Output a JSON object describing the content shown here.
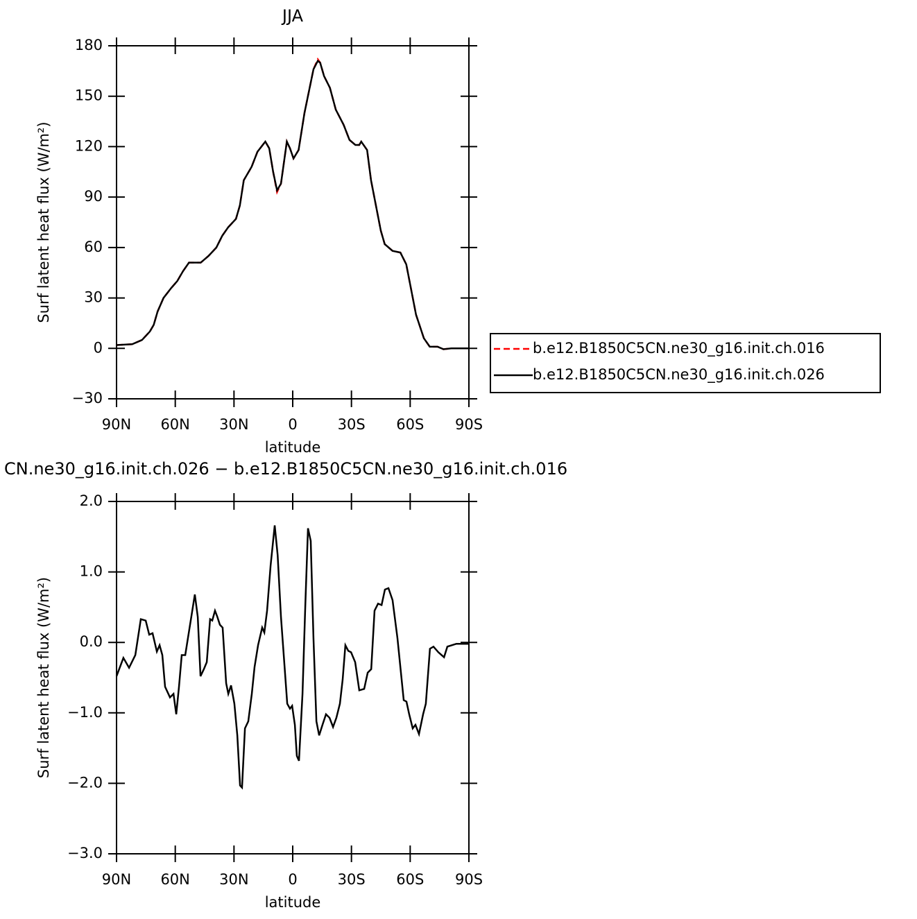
{
  "chart_data": [
    {
      "type": "line",
      "title": "JJA",
      "x_label": "latitude",
      "y_label": "Surf latent heat flux (W/m²)",
      "xlim": [
        90,
        -90
      ],
      "ylim": [
        -30,
        180
      ],
      "xticks": [
        {
          "value": 90,
          "label": "90N"
        },
        {
          "value": 60,
          "label": "60N"
        },
        {
          "value": 30,
          "label": "30N"
        },
        0,
        {
          "value": -30,
          "label": "30S"
        },
        {
          "value": -60,
          "label": "60S"
        },
        {
          "value": -90,
          "label": "90S"
        }
      ],
      "yticks": [
        {
          "value": -30,
          "label": "−30"
        },
        0,
        30,
        60,
        90,
        120,
        150,
        180
      ],
      "legend": "right",
      "x": [
        90,
        82,
        77,
        73,
        71,
        69,
        66,
        62,
        59,
        56,
        53,
        47,
        43,
        39,
        36,
        33,
        29,
        27,
        25,
        21,
        18,
        14,
        12,
        10,
        8,
        6,
        3,
        1.4,
        -0.4,
        -3,
        -6,
        -10.6,
        -12.8,
        -14,
        -16,
        -19,
        -22,
        -26,
        -29,
        -32,
        -34,
        -35,
        -38,
        -40,
        -45,
        -47,
        -51,
        -55,
        -58,
        -60,
        -63,
        -67,
        -70,
        -74,
        -77,
        -81,
        -90
      ],
      "series": [
        {
          "name": "b.e12.B1850C5CN.ne30_g16.init.ch.016",
          "color": "#ff0000",
          "dash": "dashed",
          "values": [
            2,
            2.5,
            5,
            10,
            14,
            22,
            30,
            36,
            40,
            46,
            51,
            51,
            55,
            60,
            67,
            72,
            77,
            85,
            100,
            108,
            117,
            123,
            119,
            105,
            93,
            98,
            123,
            119,
            113,
            118,
            140,
            166,
            172,
            170,
            162,
            155,
            142,
            133,
            124,
            121,
            121,
            123,
            118,
            100,
            70,
            62,
            58,
            57,
            50,
            38,
            20,
            6,
            1,
            1,
            -0.5,
            0,
            0
          ]
        },
        {
          "name": "b.e12.B1850C5CN.ne30_g16.init.ch.026",
          "color": "#000000",
          "dash": "solid",
          "values": [
            2,
            2.5,
            5,
            10,
            14,
            22,
            30,
            36,
            40,
            46,
            51,
            51,
            55,
            60,
            67,
            72,
            77,
            85,
            100,
            108,
            117,
            123,
            119,
            105,
            94,
            98,
            123,
            119,
            113,
            118,
            140,
            166,
            171,
            170,
            162,
            155,
            142,
            133,
            124,
            121,
            121,
            123,
            118,
            100,
            70,
            62,
            58,
            57,
            50,
            38,
            20,
            6,
            1,
            1,
            -0.5,
            0,
            0
          ]
        }
      ]
    },
    {
      "type": "line",
      "title": "CN.ne30_g16.init.ch.026 − b.e12.B1850C5CN.ne30_g16.init.ch.016",
      "x_label": "latitude",
      "y_label": "Surf latent heat flux (W/m²)",
      "xlim": [
        90,
        -90
      ],
      "ylim": [
        -3,
        2
      ],
      "xticks": [
        {
          "value": 90,
          "label": "90N"
        },
        {
          "value": 60,
          "label": "60N"
        },
        {
          "value": 30,
          "label": "30N"
        },
        0,
        {
          "value": -30,
          "label": "30S"
        },
        {
          "value": -60,
          "label": "60S"
        },
        {
          "value": -90,
          "label": "90S"
        }
      ],
      "yticks": [
        {
          "value": -3,
          "label": "−3.0"
        },
        {
          "value": -2,
          "label": "−2.0"
        },
        {
          "value": -1,
          "label": "−1.0"
        },
        {
          "value": 0,
          "label": "0.0"
        },
        {
          "value": 1,
          "label": "1.0"
        },
        {
          "value": 2,
          "label": "2.0"
        }
      ],
      "x": [
        90,
        86.5,
        83.6,
        80.4,
        77.6,
        75.1,
        73.3,
        71.6,
        69.4,
        68,
        66.6,
        65.2,
        62.7,
        60.9,
        59.5,
        58.1,
        56.7,
        54.9,
        52.1,
        50,
        48.5,
        47.1,
        45.4,
        43.9,
        42.2,
        41.1,
        39.7,
        38.6,
        37.2,
        35.8,
        34,
        32.9,
        31.5,
        29.8,
        28.3,
        26.9,
        25.9,
        24.4,
        22.7,
        20.9,
        19.5,
        17.7,
        15.6,
        14.5,
        13.1,
        11.3,
        9.2,
        7.7,
        6,
        4.2,
        2.8,
        1.4,
        0.3,
        -1.1,
        -2.1,
        -3.2,
        -5,
        -6.4,
        -7.8,
        -9.2,
        -10.6,
        -12.1,
        -13.5,
        -15.2,
        -17,
        -18.8,
        -20.6,
        -22.3,
        -24.1,
        -25.5,
        -26.9,
        -28.4,
        -29.8,
        -31.9,
        -34,
        -36.5,
        -38.3,
        -40.1,
        -41.8,
        -43.6,
        -45.4,
        -47.1,
        -48.9,
        -51,
        -53.5,
        -56.7,
        -58.1,
        -59.5,
        -61.3,
        -62.7,
        -64.5,
        -66.6,
        -68,
        -70.1,
        -71.9,
        -74.4,
        -77.3,
        -79,
        -83.6,
        -90
      ],
      "series": [
        {
          "color": "#000000",
          "dash": "solid",
          "values": [
            -0.48,
            -0.22,
            -0.36,
            -0.18,
            0.33,
            0.31,
            0.11,
            0.13,
            -0.13,
            -0.04,
            -0.18,
            -0.63,
            -0.78,
            -0.73,
            -1.02,
            -0.63,
            -0.18,
            -0.18,
            0.31,
            0.68,
            0.36,
            -0.48,
            -0.38,
            -0.28,
            0.33,
            0.31,
            0.45,
            0.37,
            0.25,
            0.21,
            -0.58,
            -0.73,
            -0.61,
            -0.87,
            -1.32,
            -2.03,
            -2.06,
            -1.22,
            -1.12,
            -0.73,
            -0.35,
            -0.04,
            0.21,
            0.14,
            0.45,
            1.09,
            1.66,
            1.24,
            0.36,
            -0.33,
            -0.87,
            -0.94,
            -0.9,
            -1.17,
            -1.61,
            -1.68,
            -0.73,
            0.5,
            1.62,
            1.44,
            0.06,
            -1.12,
            -1.32,
            -1.17,
            -1.02,
            -1.07,
            -1.2,
            -1.07,
            -0.87,
            -0.53,
            -0.04,
            -0.12,
            -0.14,
            -0.28,
            -0.68,
            -0.66,
            -0.43,
            -0.38,
            0.45,
            0.55,
            0.53,
            0.75,
            0.77,
            0.6,
            0.06,
            -0.82,
            -0.84,
            -1.02,
            -1.22,
            -1.17,
            -1.3,
            -1.02,
            -0.87,
            -0.09,
            -0.06,
            -0.14,
            -0.21,
            -0.06,
            -0.02,
            -0.02
          ]
        }
      ]
    }
  ]
}
